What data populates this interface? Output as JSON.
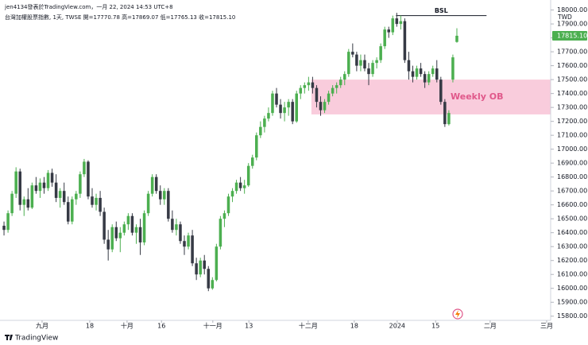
{
  "header": {
    "author_line": "jen4134發表於TradingView.com，一月 22, 2024 14:53 UTC+8",
    "symbol_line": "台灣加權股票指數, 1天, TWSE  開=17770.78  高=17869.07  低=17765.13  收=17815.10",
    "currency": "TWD",
    "brand": "TradingView"
  },
  "chart_data": {
    "type": "candlestick",
    "up_color": "#4caf50",
    "down_color": "#363a45",
    "candles": [
      [
        16450,
        16480,
        16380,
        16420
      ],
      [
        16420,
        16560,
        16400,
        16540
      ],
      [
        16540,
        16700,
        16520,
        16680
      ],
      [
        16680,
        16870,
        16650,
        16840
      ],
      [
        16840,
        16860,
        16560,
        16600
      ],
      [
        16600,
        16660,
        16520,
        16640
      ],
      [
        16640,
        16720,
        16560,
        16580
      ],
      [
        16580,
        16760,
        16570,
        16740
      ],
      [
        16740,
        16800,
        16680,
        16700
      ],
      [
        16700,
        16790,
        16650,
        16760
      ],
      [
        16760,
        16800,
        16680,
        16720
      ],
      [
        16720,
        16850,
        16700,
        16830
      ],
      [
        16830,
        16860,
        16730,
        16760
      ],
      [
        16760,
        16820,
        16620,
        16650
      ],
      [
        16650,
        16720,
        16580,
        16700
      ],
      [
        16700,
        16760,
        16600,
        16620
      ],
      [
        16620,
        16660,
        16460,
        16480
      ],
      [
        16480,
        16660,
        16460,
        16640
      ],
      [
        16640,
        16700,
        16600,
        16680
      ],
      [
        16680,
        16840,
        16650,
        16820
      ],
      [
        16820,
        16930,
        16800,
        16910
      ],
      [
        16910,
        16920,
        16640,
        16660
      ],
      [
        16660,
        16720,
        16580,
        16600
      ],
      [
        16600,
        16680,
        16560,
        16650
      ],
      [
        16650,
        16700,
        16520,
        16550
      ],
      [
        16550,
        16580,
        16320,
        16350
      ],
      [
        16350,
        16420,
        16200,
        16280
      ],
      [
        16280,
        16460,
        16260,
        16440
      ],
      [
        16440,
        16480,
        16340,
        16360
      ],
      [
        16360,
        16440,
        16260,
        16400
      ],
      [
        16400,
        16480,
        16380,
        16460
      ],
      [
        16460,
        16540,
        16420,
        16520
      ],
      [
        16520,
        16540,
        16380,
        16400
      ],
      [
        16400,
        16460,
        16320,
        16440
      ],
      [
        16440,
        16500,
        16240,
        16330
      ],
      [
        16330,
        16560,
        16310,
        16540
      ],
      [
        16540,
        16700,
        16520,
        16680
      ],
      [
        16680,
        16820,
        16660,
        16800
      ],
      [
        16800,
        16820,
        16680,
        16700
      ],
      [
        16700,
        16740,
        16600,
        16640
      ],
      [
        16640,
        16720,
        16600,
        16700
      ],
      [
        16700,
        16720,
        16480,
        16500
      ],
      [
        16500,
        16560,
        16400,
        16420
      ],
      [
        16420,
        16500,
        16380,
        16460
      ],
      [
        16460,
        16480,
        16320,
        16340
      ],
      [
        16340,
        16380,
        16240,
        16300
      ],
      [
        16300,
        16400,
        16280,
        16380
      ],
      [
        16380,
        16420,
        16160,
        16180
      ],
      [
        16180,
        16220,
        16060,
        16100
      ],
      [
        16100,
        16220,
        16080,
        16200
      ],
      [
        16200,
        16240,
        16100,
        16140
      ],
      [
        16140,
        16160,
        15980,
        16000
      ],
      [
        16000,
        16080,
        15990,
        16060
      ],
      [
        16060,
        16320,
        16050,
        16300
      ],
      [
        16300,
        16520,
        16280,
        16500
      ],
      [
        16500,
        16560,
        16440,
        16540
      ],
      [
        16540,
        16680,
        16520,
        16660
      ],
      [
        16660,
        16720,
        16620,
        16700
      ],
      [
        16700,
        16780,
        16680,
        16760
      ],
      [
        16760,
        16800,
        16700,
        16720
      ],
      [
        16720,
        16780,
        16680,
        16740
      ],
      [
        16740,
        16900,
        16730,
        16880
      ],
      [
        16880,
        16960,
        16860,
        16940
      ],
      [
        16940,
        17120,
        16920,
        17100
      ],
      [
        17100,
        17200,
        17080,
        17160
      ],
      [
        17160,
        17240,
        17120,
        17220
      ],
      [
        17220,
        17300,
        17200,
        17260
      ],
      [
        17260,
        17420,
        17240,
        17400
      ],
      [
        17400,
        17440,
        17300,
        17320
      ],
      [
        17320,
        17360,
        17220,
        17260
      ],
      [
        17260,
        17340,
        17200,
        17300
      ],
      [
        17300,
        17360,
        17240,
        17340
      ],
      [
        17340,
        17360,
        17180,
        17200
      ],
      [
        17200,
        17420,
        17190,
        17400
      ],
      [
        17400,
        17460,
        17360,
        17440
      ],
      [
        17440,
        17480,
        17400,
        17460
      ],
      [
        17460,
        17520,
        17420,
        17480
      ],
      [
        17480,
        17520,
        17400,
        17440
      ],
      [
        17440,
        17460,
        17300,
        17340
      ],
      [
        17340,
        17380,
        17240,
        17280
      ],
      [
        17280,
        17360,
        17260,
        17340
      ],
      [
        17340,
        17420,
        17320,
        17400
      ],
      [
        17400,
        17460,
        17380,
        17440
      ],
      [
        17440,
        17480,
        17400,
        17460
      ],
      [
        17460,
        17520,
        17440,
        17500
      ],
      [
        17500,
        17560,
        17460,
        17540
      ],
      [
        17540,
        17720,
        17520,
        17700
      ],
      [
        17700,
        17760,
        17660,
        17680
      ],
      [
        17680,
        17700,
        17560,
        17600
      ],
      [
        17600,
        17680,
        17560,
        17640
      ],
      [
        17640,
        17680,
        17560,
        17580
      ],
      [
        17580,
        17620,
        17460,
        17540
      ],
      [
        17540,
        17640,
        17520,
        17620
      ],
      [
        17620,
        17660,
        17580,
        17640
      ],
      [
        17640,
        17760,
        17620,
        17740
      ],
      [
        17740,
        17880,
        17720,
        17860
      ],
      [
        17860,
        17880,
        17800,
        17840
      ],
      [
        17840,
        17960,
        17820,
        17940
      ],
      [
        17940,
        17980,
        17880,
        17900
      ],
      [
        17900,
        17960,
        17860,
        17920
      ],
      [
        17920,
        17940,
        17620,
        17640
      ],
      [
        17640,
        17700,
        17500,
        17560
      ],
      [
        17560,
        17600,
        17480,
        17520
      ],
      [
        17520,
        17600,
        17500,
        17580
      ],
      [
        17580,
        17620,
        17520,
        17540
      ],
      [
        17540,
        17560,
        17440,
        17480
      ],
      [
        17480,
        17560,
        17460,
        17540
      ],
      [
        17540,
        17600,
        17520,
        17580
      ],
      [
        17580,
        17640,
        17480,
        17500
      ],
      [
        17500,
        17520,
        17320,
        17340
      ],
      [
        17340,
        17360,
        17160,
        17180
      ],
      [
        17180,
        17280,
        17170,
        17260
      ],
      [
        17500,
        17680,
        17480,
        17660
      ],
      [
        17770.78,
        17869.07,
        17765.13,
        17815.1
      ]
    ],
    "xlim": [
      -1,
      136.4
    ],
    "xticks": [
      {
        "value": 9.5,
        "label": "九月"
      },
      {
        "value": 21.4,
        "label": "18"
      },
      {
        "value": 30.7,
        "label": "十月"
      },
      {
        "value": 39.3,
        "label": "16"
      },
      {
        "value": 52.1,
        "label": "十一月"
      },
      {
        "value": 61.1,
        "label": "13"
      },
      {
        "value": 75.9,
        "label": "十二月"
      },
      {
        "value": 87.4,
        "label": "18"
      },
      {
        "value": 98.1,
        "label": "2024"
      },
      {
        "value": 107.7,
        "label": "15"
      },
      {
        "value": 121.3,
        "label": "二月"
      },
      {
        "value": 135.4,
        "label": "三月"
      }
    ],
    "ylim": [
      15770,
      18072
    ],
    "yticks": [
      {
        "value": 15800,
        "label": "15800.00"
      },
      {
        "value": 15900,
        "label": "15900.00"
      },
      {
        "value": 16000,
        "label": "16000.00"
      },
      {
        "value": 16100,
        "label": "16100.00"
      },
      {
        "value": 16200,
        "label": "16200.00"
      },
      {
        "value": 16300,
        "label": "16300.00"
      },
      {
        "value": 16400,
        "label": "16400.00"
      },
      {
        "value": 16500,
        "label": "16500.00"
      },
      {
        "value": 16600,
        "label": "16600.00"
      },
      {
        "value": 16700,
        "label": "16700.00"
      },
      {
        "value": 16800,
        "label": "16800.00"
      },
      {
        "value": 16900,
        "label": "16900.00"
      },
      {
        "value": 17000,
        "label": "17000.00"
      },
      {
        "value": 17100,
        "label": "17100.00"
      },
      {
        "value": 17200,
        "label": "17200.00"
      },
      {
        "value": 17300,
        "label": "17300.00"
      },
      {
        "value": 17400,
        "label": "17400.00"
      },
      {
        "value": 17500,
        "label": "17500.00"
      },
      {
        "value": 17600,
        "label": "17600.00"
      },
      {
        "value": 17700,
        "label": "17700.00"
      },
      {
        "value": 17800,
        "label": "17800.00"
      },
      {
        "value": 17900,
        "label": "17900.00"
      },
      {
        "value": 18000,
        "label": "18000.00"
      }
    ],
    "last_price": {
      "value": 17815.1,
      "label": "17815.10"
    },
    "zone": {
      "text": "Weekly OB",
      "x_start": 76.7,
      "y_range": [
        17250,
        17500
      ],
      "color": "#f8c3d6",
      "text_color": "#e0588a"
    },
    "level": {
      "text": "BSL",
      "y": 17960,
      "x_range": [
        97.8,
        120.4
      ]
    }
  }
}
